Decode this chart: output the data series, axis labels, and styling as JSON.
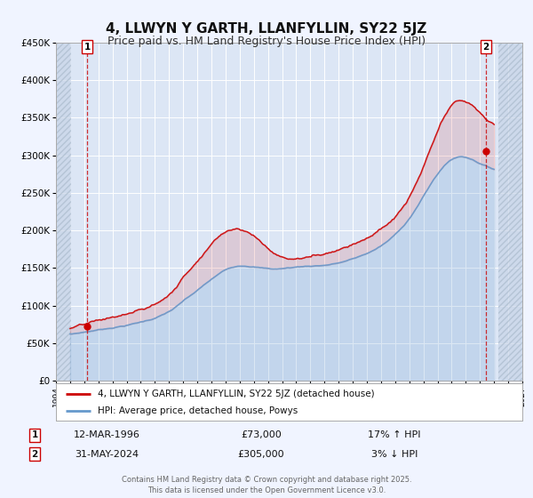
{
  "title": "4, LLWYN Y GARTH, LLANFYLLIN, SY22 5JZ",
  "subtitle": "Price paid vs. HM Land Registry's House Price Index (HPI)",
  "title_fontsize": 11,
  "subtitle_fontsize": 9,
  "bg_color": "#f0f4ff",
  "plot_bg_color": "#dce6f5",
  "grid_color": "#ffffff",
  "red_color": "#cc0000",
  "blue_color": "#6699cc",
  "marker1_x": 1996.2,
  "marker1_y": 73000,
  "marker2_x": 2024.42,
  "marker2_y": 305000,
  "legend1": "4, LLWYN Y GARTH, LLANFYLLIN, SY22 5JZ (detached house)",
  "legend2": "HPI: Average price, detached house, Powys",
  "annotation1_date": "12-MAR-1996",
  "annotation1_price": "£73,000",
  "annotation1_hpi": "17% ↑ HPI",
  "annotation2_date": "31-MAY-2024",
  "annotation2_price": "£305,000",
  "annotation2_hpi": "3% ↓ HPI",
  "footer": "Contains HM Land Registry data © Crown copyright and database right 2025.\nThis data is licensed under the Open Government Licence v3.0.",
  "ylim": [
    0,
    450000
  ],
  "yticks": [
    0,
    50000,
    100000,
    150000,
    200000,
    250000,
    300000,
    350000,
    400000,
    450000
  ],
  "ytick_labels": [
    "£0",
    "£50K",
    "£100K",
    "£150K",
    "£200K",
    "£250K",
    "£300K",
    "£350K",
    "£400K",
    "£450K"
  ],
  "xlim_start": 1994,
  "xlim_end": 2027
}
